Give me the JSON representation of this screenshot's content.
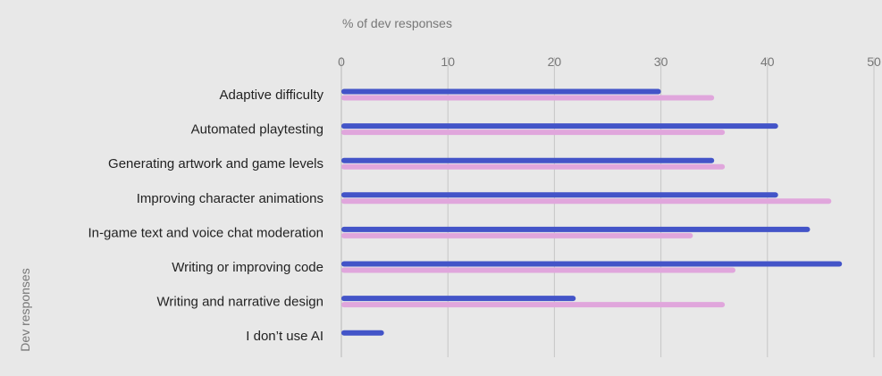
{
  "chart_data": {
    "type": "bar",
    "orientation": "horizontal",
    "xlabel": "% of dev responses",
    "ylabel": "Dev responses",
    "xlim": [
      0,
      50
    ],
    "x_ticks": [
      0,
      10,
      20,
      30,
      40,
      50
    ],
    "grid": true,
    "categories": [
      "Adaptive difficulty",
      "Automated playtesting",
      "Generating artwork and game levels",
      "Improving character animations",
      "In-game text and voice chat moderation",
      "Writing or improving code",
      "Writing and narrative design",
      "I don’t use AI"
    ],
    "series": [
      {
        "values": [
          30,
          41,
          35,
          41,
          44,
          47,
          22,
          4
        ],
        "color": "#4354c8"
      },
      {
        "values": [
          35,
          36,
          36,
          46,
          33,
          37,
          36,
          null
        ],
        "color": "#e0a6dc"
      }
    ],
    "colors": {
      "background": "#e8e8e8",
      "grid": "#c6c6c6",
      "axis_text": "#777777",
      "label_text": "#222222"
    }
  }
}
